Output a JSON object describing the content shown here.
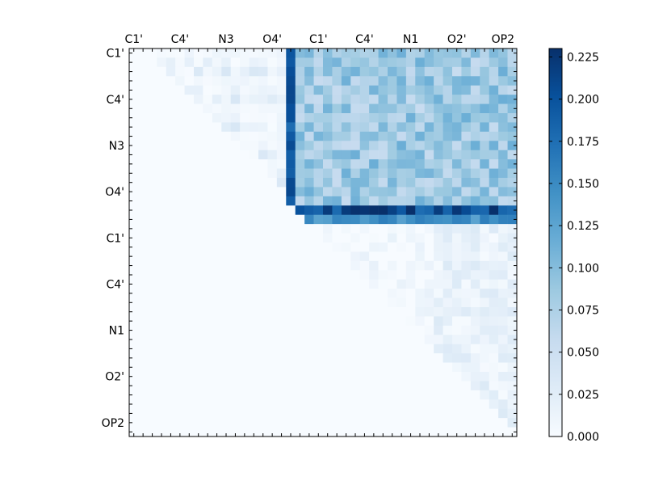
{
  "chart_data": {
    "type": "heatmap",
    "title": "",
    "xlabel": "",
    "ylabel": "",
    "n": 42,
    "tick_labels": [
      "C1'",
      "C4'",
      "N3",
      "O4'",
      "C1'",
      "C4'",
      "N1",
      "O2'",
      "OP2"
    ],
    "x_tick_labels": [
      "C1'",
      "C4'",
      "N3",
      "O4'",
      "C1'",
      "C4'",
      "N1",
      "O2'",
      "OP2"
    ],
    "y_tick_labels": [
      "C1'",
      "C4'",
      "N3",
      "O4'",
      "C1'",
      "C4'",
      "N1",
      "O2'",
      "OP2"
    ],
    "tick_label_index": [
      0,
      5,
      10,
      15,
      20,
      25,
      30,
      35,
      40
    ],
    "color_range": [
      0.0,
      0.23
    ],
    "colorbar_ticks": [
      "0.000",
      "0.025",
      "0.050",
      "0.075",
      "0.100",
      "0.125",
      "0.150",
      "0.175",
      "0.200",
      "0.225"
    ],
    "colorbar_tick_values": [
      0.0,
      0.025,
      0.05,
      0.075,
      0.1,
      0.125,
      0.15,
      0.175,
      0.2,
      0.225
    ],
    "colormap": [
      "#f7fbff",
      "#deebf7",
      "#c6dbef",
      "#9ecae1",
      "#6baed6",
      "#4292c6",
      "#2171b5",
      "#08519c",
      "#08306b"
    ],
    "grid": false,
    "matrix_note": "upper-triangular distance matrix; lower triangle is 0",
    "strong_rows": [
      {
        "row": 17,
        "value": 0.215
      },
      {
        "row": 18,
        "value": 0.15
      }
    ],
    "strong_cols": [
      {
        "col": 17,
        "value": 0.2
      }
    ]
  }
}
